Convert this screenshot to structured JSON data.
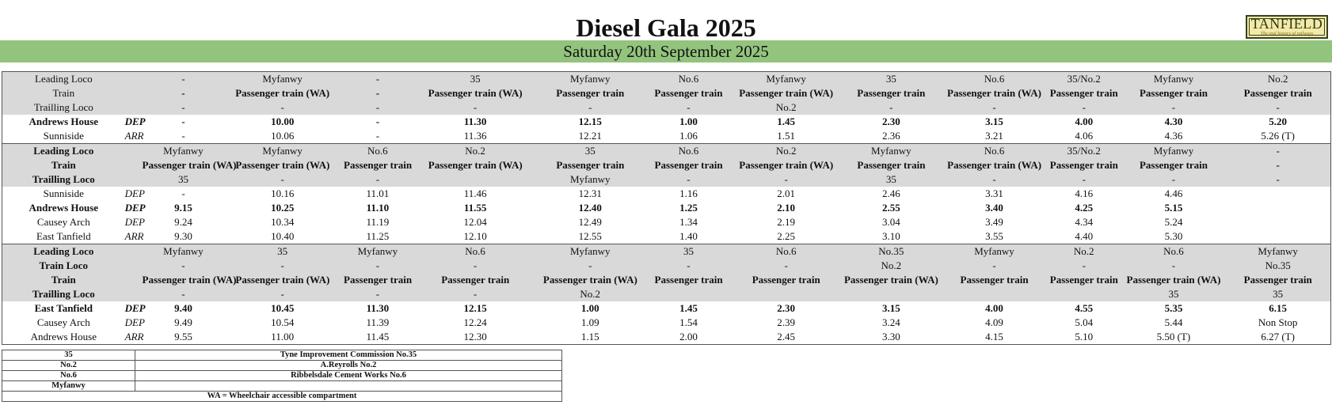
{
  "header": {
    "title": "Diesel Gala 2025",
    "subtitle": "Saturday 20th September 2025",
    "logo": {
      "name": "TANFIELD",
      "tagline": "The real history of railways"
    }
  },
  "sections": [
    {
      "rows": [
        {
          "label": "Leading Loco",
          "code": "",
          "style": "shade",
          "cells": [
            "-",
            "Myfanwy",
            "-",
            "35",
            "Myfanwy",
            "No.6",
            "Myfanwy",
            "35",
            "No.6",
            "35/No.2",
            "Myfanwy",
            "No.2"
          ]
        },
        {
          "label": "Train",
          "code": "",
          "style": "shade",
          "cells": [
            "-",
            "Passenger train (WA)",
            "-",
            "Passenger train (WA)",
            "Passenger train",
            "Passenger train",
            "Passenger train (WA)",
            "Passenger train",
            "Passenger train (WA)",
            "Passenger train",
            "Passenger train",
            "Passenger train"
          ],
          "cell_bold": true
        },
        {
          "label": "Trailling Loco",
          "code": "",
          "style": "shade",
          "cells": [
            "-",
            "-",
            "-",
            "-",
            "-",
            "-",
            "No.2",
            "-",
            "-",
            "-",
            "-",
            "-"
          ]
        },
        {
          "label": "Andrews House",
          "code": "DEP",
          "style": "bold",
          "cells": [
            "-",
            "10.00",
            "-",
            "11.30",
            "12.15",
            "1.00",
            "1.45",
            "2.30",
            "3.15",
            "4.00",
            "4.30",
            "5.20"
          ]
        },
        {
          "label": "Sunniside",
          "code": "ARR",
          "style": "",
          "cells": [
            "-",
            "10.06",
            "-",
            "11.36",
            "12.21",
            "1.06",
            "1.51",
            "2.36",
            "3.21",
            "4.06",
            "4.36",
            "5.26 (T)"
          ]
        }
      ]
    },
    {
      "rows": [
        {
          "label": "Leading Loco",
          "code": "",
          "style": "shade bold-label",
          "cells": [
            "Myfanwy",
            "Myfanwy",
            "No.6",
            "No.2",
            "35",
            "No.6",
            "No.2",
            "Myfanwy",
            "No.6",
            "35/No.2",
            "Myfanwy",
            "-"
          ]
        },
        {
          "label": "Train",
          "code": "",
          "style": "shade bold-label",
          "cells": [
            "Passenger train (WA)",
            "Passenger train (WA)",
            "Passenger train",
            "Passenger train (WA)",
            "Passenger train",
            "Passenger train",
            "Passenger train (WA)",
            "Passenger train",
            "Passenger train (WA)",
            "Passenger train",
            "Passenger train",
            "-"
          ],
          "cell_bold": true
        },
        {
          "label": "Trailling Loco",
          "code": "",
          "style": "shade bold-label",
          "cells": [
            "35",
            "-",
            "-",
            "",
            "Myfanwy",
            "-",
            "-",
            "35",
            "-",
            "-",
            "-",
            "-"
          ]
        },
        {
          "label": "Sunniside",
          "code": "DEP",
          "style": "",
          "cells": [
            "-",
            "10.16",
            "11.01",
            "11.46",
            "12.31",
            "1.16",
            "2.01",
            "2.46",
            "3.31",
            "4.16",
            "4.46",
            ""
          ]
        },
        {
          "label": "Andrews House",
          "code": "DEP",
          "style": "bold",
          "cells": [
            "9.15",
            "10.25",
            "11.10",
            "11.55",
            "12.40",
            "1.25",
            "2.10",
            "2.55",
            "3.40",
            "4.25",
            "5.15",
            ""
          ]
        },
        {
          "label": "Causey Arch",
          "code": "DEP",
          "style": "",
          "cells": [
            "9.24",
            "10.34",
            "11.19",
            "12.04",
            "12.49",
            "1.34",
            "2.19",
            "3.04",
            "3.49",
            "4.34",
            "5.24",
            ""
          ]
        },
        {
          "label": "East Tanfield",
          "code": "ARR",
          "style": "",
          "cells": [
            "9.30",
            "10.40",
            "11.25",
            "12.10",
            "12.55",
            "1.40",
            "2.25",
            "3.10",
            "3.55",
            "4.40",
            "5.30",
            ""
          ]
        }
      ]
    },
    {
      "rows": [
        {
          "label": "Leading Loco",
          "code": "",
          "style": "shade bold-label",
          "cells": [
            "Myfanwy",
            "35",
            "Myfanwy",
            "No.6",
            "Myfanwy",
            "35",
            "No.6",
            "No.35",
            "Myfanwy",
            "No.2",
            "No.6",
            "Myfanwy"
          ]
        },
        {
          "label": "Train Loco",
          "code": "",
          "style": "shade bold-label",
          "cells": [
            "-",
            "-",
            "-",
            "-",
            "-",
            "-",
            "-",
            "No.2",
            "-",
            "-",
            "-",
            "No.35"
          ]
        },
        {
          "label": "Train",
          "code": "",
          "style": "shade bold-label",
          "cells": [
            "Passenger train (WA)",
            "Passenger train (WA)",
            "Passenger train",
            "Passenger train",
            "Passenger train (WA)",
            "Passenger train",
            "Passenger train",
            "Passenger train (WA)",
            "Passenger train",
            "Passenger train",
            "Passenger train (WA)",
            "Passenger train"
          ],
          "cell_bold": true
        },
        {
          "label": "Trailling Loco",
          "code": "",
          "style": "shade bold-label",
          "cells": [
            "-",
            "-",
            "-",
            "-",
            "No.2",
            "",
            "",
            "",
            "",
            "",
            "35",
            "35"
          ]
        },
        {
          "label": "East Tanfield",
          "code": "DEP",
          "style": "bold",
          "cells": [
            "9.40",
            "10.45",
            "11.30",
            "12.15",
            "1.00",
            "1.45",
            "2.30",
            "3.15",
            "4.00",
            "4.55",
            "5.35",
            "6.15"
          ]
        },
        {
          "label": "Causey Arch",
          "code": "DEP",
          "style": "",
          "cells": [
            "9.49",
            "10.54",
            "11.39",
            "12.24",
            "1.09",
            "1.54",
            "2.39",
            "3.24",
            "4.09",
            "5.04",
            "5.44",
            "Non Stop"
          ]
        },
        {
          "label": "Andrews House",
          "code": "ARR",
          "style": "",
          "cells": [
            "9.55",
            "11.00",
            "11.45",
            "12.30",
            "1.15",
            "2.00",
            "2.45",
            "3.30",
            "4.15",
            "5.10",
            "5.50 (T)",
            "6.27 (T)"
          ]
        }
      ]
    }
  ],
  "legend": {
    "entries": [
      {
        "key": "35",
        "value": "Tyne Improvement Commission No.35"
      },
      {
        "key": "No.2",
        "value": "A.Reyrolls No.2"
      },
      {
        "key": "No.6",
        "value": "Ribbelsdale Cement Works No.6"
      },
      {
        "key": "Myfanwy",
        "value": ""
      }
    ],
    "note": "WA = Wheelchair accessible compartment"
  }
}
